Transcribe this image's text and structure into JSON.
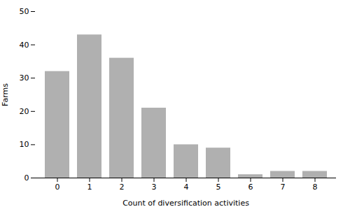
{
  "chart_data": {
    "type": "bar",
    "categories": [
      0,
      1,
      2,
      3,
      4,
      5,
      6,
      7,
      8
    ],
    "values": [
      32,
      43,
      36,
      21,
      10,
      9,
      1,
      2,
      2
    ],
    "color": "#b0b0b0",
    "xlabel": "Count of diversification activities",
    "ylabel": "Farms",
    "ylim": [
      0,
      50
    ],
    "yticks": [
      0,
      10,
      20,
      30,
      40,
      50
    ],
    "grid": false
  }
}
